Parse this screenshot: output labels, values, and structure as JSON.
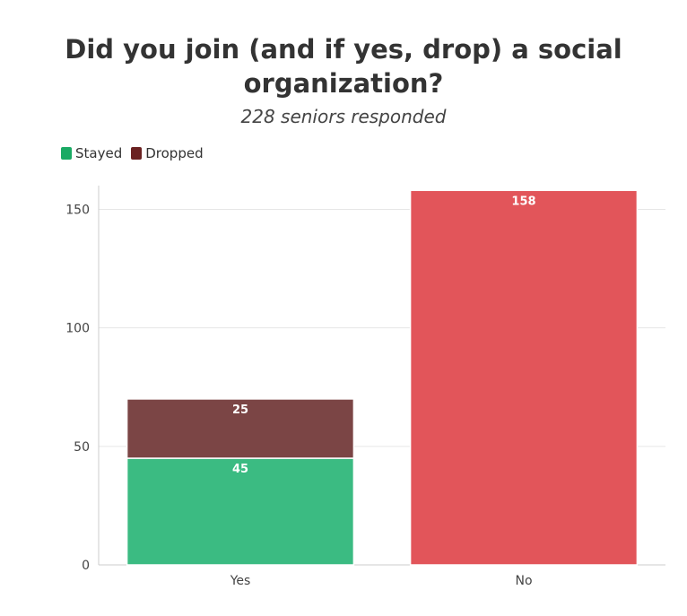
{
  "chart_data": {
    "type": "bar",
    "stacked": true,
    "title": "Did you join (and if yes, drop) a social organization?",
    "subtitle": "228 seniors responded",
    "categories": [
      "Yes",
      "No"
    ],
    "series": [
      {
        "name": "Stayed",
        "values": [
          45,
          null
        ],
        "color": "#3bbb82"
      },
      {
        "name": "Dropped",
        "values": [
          25,
          null
        ],
        "color": "#7b4545"
      },
      {
        "values": [
          null,
          158
        ],
        "color": "#e2555a"
      }
    ],
    "data_labels": {
      "Yes": [
        "45",
        "25"
      ],
      "No": [
        "158"
      ]
    },
    "yticks": [
      0,
      50,
      100,
      150
    ],
    "ylim": [
      0,
      160
    ],
    "grid": true,
    "legend": "top-left",
    "legend_colors": {
      "Stayed": "#1aaa64",
      "Dropped": "#6b2222"
    }
  }
}
